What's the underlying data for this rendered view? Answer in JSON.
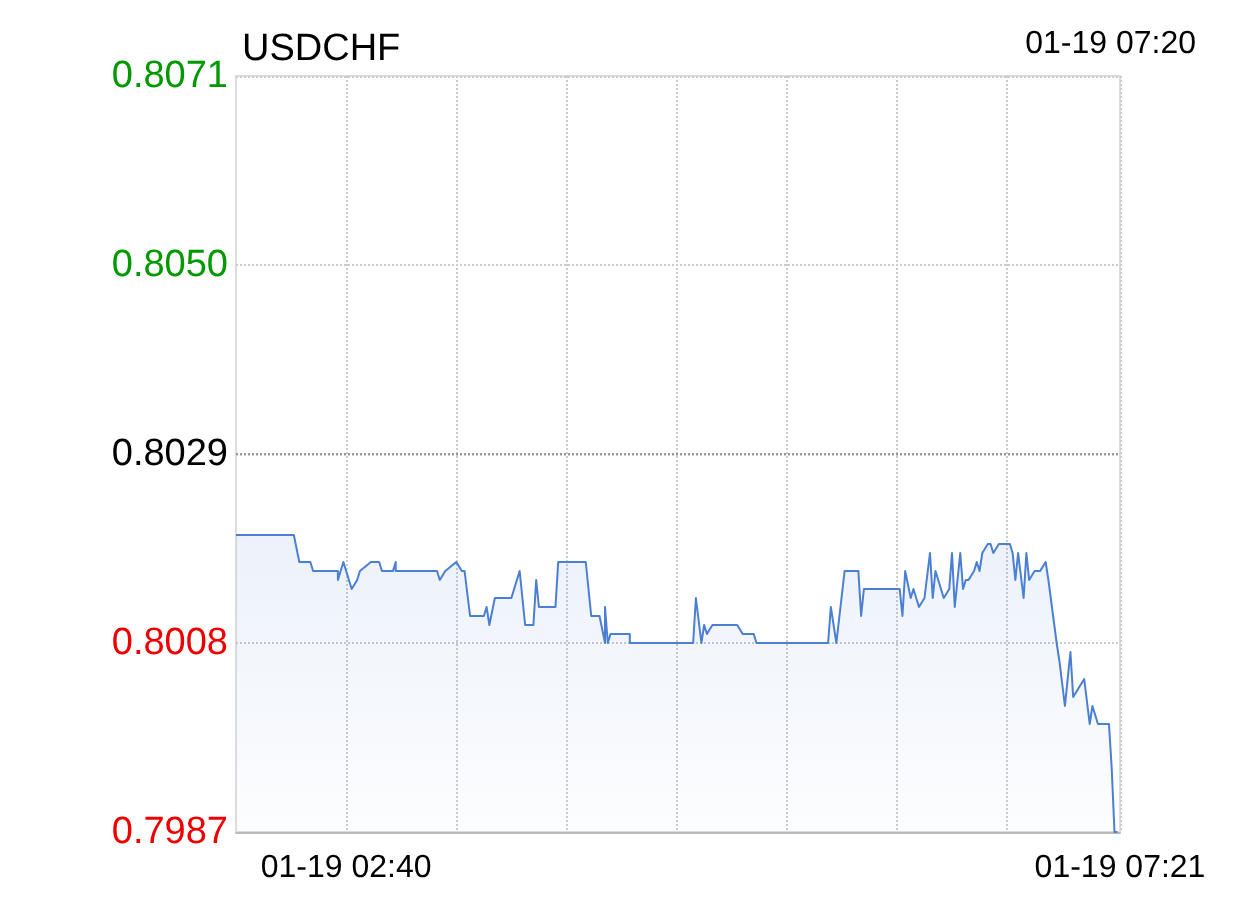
{
  "chart_data": {
    "type": "area",
    "title": "USDCHF",
    "annotations": [
      "01-19 07:20"
    ],
    "x": [
      "--01-19T02:00",
      "--01-19T02:21",
      "--01-19T02:23",
      "--01-19T02:27",
      "--01-19T02:28",
      "--01-19T02:37",
      "--01-19T02:37",
      "--01-19T02:39",
      "--01-19T02:42",
      "--01-19T02:44",
      "--01-19T02:45",
      "--01-19T02:49",
      "--01-19T02:52",
      "--01-19T02:53",
      "--01-19T02:57",
      "--01-19T02:58",
      "--01-19T02:58",
      "--01-19T03:13",
      "--01-19T03:14",
      "--01-19T03:16",
      "--01-19T03:20",
      "--01-19T03:22",
      "--01-19T03:23",
      "--01-19T03:25",
      "--01-19T03:30",
      "--01-19T03:31",
      "--01-19T03:32",
      "--01-19T03:34",
      "--01-19T03:40",
      "--01-19T03:43",
      "--01-19T03:45",
      "--01-19T03:48",
      "--01-19T03:49",
      "--01-19T03:50",
      "--01-19T03:56",
      "--01-19T03:57",
      "--01-19T04:07",
      "--01-19T04:09",
      "--01-19T04:12",
      "--01-19T04:14",
      "--01-19T04:14",
      "--01-19T04:15",
      "--01-19T04:16",
      "--01-19T04:23",
      "--01-19T04:23",
      "--01-19T04:46",
      "--01-19T04:47",
      "--01-19T04:49",
      "--01-19T04:50",
      "--01-19T04:51",
      "--01-19T04:53",
      "--01-19T05:02",
      "--01-19T05:04",
      "--01-19T05:08",
      "--01-19T05:09",
      "--01-19T05:35",
      "--01-19T05:36",
      "--01-19T05:38",
      "--01-19T05:41",
      "--01-19T05:46",
      "--01-19T05:47",
      "--01-19T05:48",
      "--01-19T06:01",
      "--01-19T06:02",
      "--01-19T06:03",
      "--01-19T06:05",
      "--01-19T06:06",
      "--01-19T06:08",
      "--01-19T06:10",
      "--01-19T06:12",
      "--01-19T06:13",
      "--01-19T06:14",
      "--01-19T06:16",
      "--01-19T06:17",
      "--01-19T06:19",
      "--01-19T06:20",
      "--01-19T06:21",
      "--01-19T06:23",
      "--01-19T06:24",
      "--01-19T06:25",
      "--01-19T06:26",
      "--01-19T06:28",
      "--01-19T06:29",
      "--01-19T06:30",
      "--01-19T06:31",
      "--01-19T06:33",
      "--01-19T06:34",
      "--01-19T06:35",
      "--01-19T06:37",
      "--01-19T06:38",
      "--01-19T06:39",
      "--01-19T06:41",
      "--01-19T06:42",
      "--01-19T06:43",
      "--01-19T06:44",
      "--01-19T06:46",
      "--01-19T06:47",
      "--01-19T06:48",
      "--01-19T06:50",
      "--01-19T06:52",
      "--01-19T06:54",
      "--01-19T06:55",
      "--01-19T06:58",
      "--01-19T06:59",
      "--01-19T07:01",
      "--01-19T07:03",
      "--01-19T07:04",
      "--01-19T07:06",
      "--01-19T07:08",
      "--01-19T07:10",
      "--01-19T07:11",
      "--01-19T07:13",
      "--01-19T07:17",
      "--01-19T07:18",
      "--01-19T07:19",
      "--01-19T07:20"
    ],
    "series": [
      {
        "color": "#4a7fd4",
        "values": [
          0.802,
          0.802,
          0.8017,
          0.8017,
          0.8016,
          0.8016,
          0.8015,
          0.8017,
          0.8014,
          0.8015,
          0.8016,
          0.8017,
          0.8017,
          0.8016,
          0.8016,
          0.8017,
          0.8016,
          0.8016,
          0.8015,
          0.8016,
          0.8017,
          0.8016,
          0.8016,
          0.8011,
          0.8011,
          0.8012,
          0.801,
          0.8013,
          0.8013,
          0.8016,
          0.801,
          0.801,
          0.8015,
          0.8012,
          0.8012,
          0.8017,
          0.8017,
          0.8011,
          0.8011,
          0.8008,
          0.8012,
          0.8008,
          0.8009,
          0.8009,
          0.8008,
          0.8008,
          0.8013,
          0.8008,
          0.801,
          0.8009,
          0.801,
          0.801,
          0.8009,
          0.8009,
          0.8008,
          0.8008,
          0.8012,
          0.8008,
          0.8016,
          0.8016,
          0.8011,
          0.8014,
          0.8014,
          0.8011,
          0.8016,
          0.8013,
          0.8014,
          0.8012,
          0.8013,
          0.8018,
          0.8013,
          0.8016,
          0.8014,
          0.8013,
          0.8014,
          0.8018,
          0.8012,
          0.8018,
          0.8014,
          0.8015,
          0.8015,
          0.8016,
          0.8017,
          0.8016,
          0.8018,
          0.8019,
          0.8019,
          0.8018,
          0.8019,
          0.8019,
          0.8019,
          0.8019,
          0.8018,
          0.8015,
          0.8018,
          0.8013,
          0.8018,
          0.8015,
          0.8016,
          0.8016,
          0.8017,
          0.8015,
          0.8008,
          0.8006,
          0.8001,
          0.8007,
          0.8002,
          0.8003,
          0.8004,
          0.7999,
          0.8001,
          0.7999,
          0.7999,
          0.7994,
          0.7987,
          0.7987
        ]
      }
    ],
    "xlim": [
      "--01-19T02:00",
      "--01-19T07:21"
    ],
    "xticks": [
      {
        "value": "--01-19T02:40",
        "label": "01-19 02:40"
      },
      {
        "value": "--01-19T03:20",
        "label": null
      },
      {
        "value": "--01-19T04:00",
        "label": null
      },
      {
        "value": "--01-19T04:40",
        "label": null
      },
      {
        "value": "--01-19T05:20",
        "label": null
      },
      {
        "value": "--01-19T06:00",
        "label": null
      },
      {
        "value": "--01-19T06:40",
        "label": null
      },
      {
        "value": "--01-19T07:21",
        "label": "01-19 07:21"
      }
    ],
    "ylim": [
      0.7987,
      0.8071
    ],
    "yticks": [
      0.7987,
      0.8008,
      0.8029,
      {
        "value": 0.805,
        "label": "0.8050"
      },
      0.8071
    ],
    "ref_lines": [
      {
        "axis": "y",
        "value": 0.8029,
        "color": "#999999",
        "line_style": "dotted"
      }
    ],
    "grid": true,
    "marker": "none",
    "line_style": "solid"
  }
}
